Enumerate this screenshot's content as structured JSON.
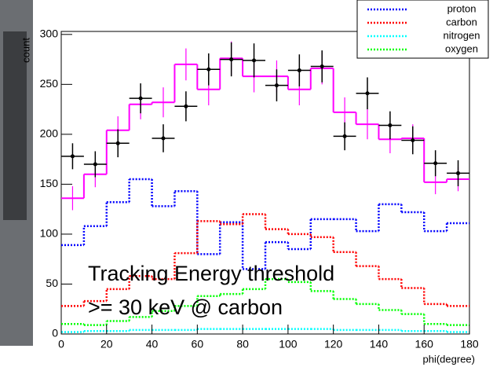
{
  "chart_data": {
    "type": "histogram",
    "bins": [
      0,
      10,
      20,
      30,
      40,
      50,
      60,
      70,
      80,
      90,
      100,
      110,
      120,
      130,
      140,
      150,
      160,
      170,
      180
    ],
    "xlabel": "phi(degree)",
    "ylabel": "count",
    "xlim": [
      0,
      180
    ],
    "ylim": [
      0,
      303
    ],
    "xticks": [
      0,
      20,
      40,
      60,
      80,
      100,
      120,
      140,
      160,
      180
    ],
    "yticks": [
      0,
      50,
      100,
      150,
      200,
      250,
      300
    ],
    "annotations": [
      "Tracking Energy threshold",
      ">= 30 keV @ carbon"
    ],
    "series": [
      {
        "color": "#ff00ff",
        "style": "solid",
        "values": [
          136,
          160,
          204,
          230,
          232,
          270,
          245,
          276,
          258,
          258,
          245,
          266,
          222,
          210,
          195,
          196,
          152,
          155
        ],
        "errors": [
          12,
          13,
          14,
          15,
          15,
          16,
          16,
          17,
          16,
          16,
          16,
          16,
          15,
          15,
          14,
          14,
          12,
          12
        ]
      },
      {
        "color": "#000000",
        "style": "points",
        "values": [
          178,
          170,
          191,
          236,
          196,
          228,
          265,
          275,
          274,
          249,
          264,
          268,
          198,
          241,
          209,
          194,
          171,
          161
        ],
        "errors": [
          13,
          13,
          14,
          15,
          14,
          15,
          16,
          17,
          17,
          16,
          16,
          16,
          14,
          16,
          14,
          14,
          13,
          13
        ]
      },
      {
        "name": "proton",
        "color": "#0000ff",
        "style": "dotted",
        "values": [
          89,
          108,
          132,
          155,
          128,
          143,
          80,
          112,
          65,
          92,
          85,
          115,
          115,
          103,
          130,
          122,
          103,
          111
        ]
      },
      {
        "name": "carbon",
        "color": "#ff0000",
        "style": "dotted",
        "values": [
          28,
          33,
          45,
          58,
          55,
          81,
          113,
          110,
          120,
          105,
          100,
          97,
          82,
          68,
          55,
          46,
          30,
          28
        ]
      },
      {
        "name": "nitrogen",
        "color": "#00ffff",
        "style": "dotted",
        "values": [
          2,
          3,
          3,
          4,
          4,
          4,
          5,
          5,
          5,
          5,
          5,
          5,
          4,
          4,
          4,
          3,
          3,
          2
        ]
      },
      {
        "name": "oxygen",
        "color": "#00ff00",
        "style": "dotted",
        "values": [
          10,
          9,
          13,
          17,
          23,
          28,
          38,
          40,
          45,
          55,
          52,
          43,
          35,
          30,
          24,
          20,
          10,
          9
        ]
      }
    ]
  }
}
